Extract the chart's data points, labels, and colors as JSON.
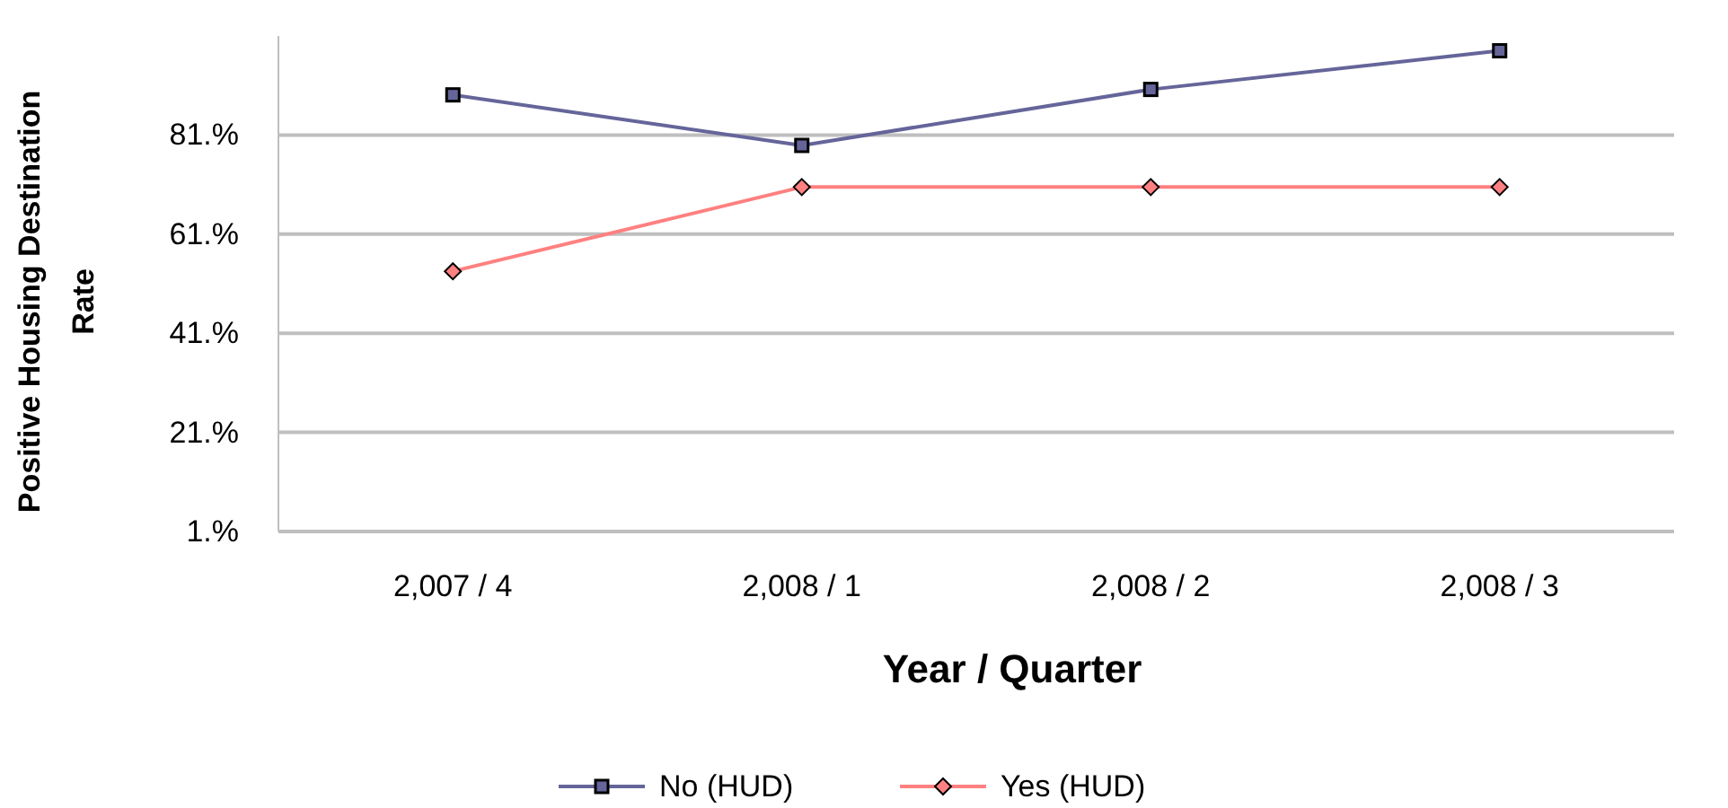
{
  "chart_data": {
    "type": "line",
    "xlabel": "Year / Quarter",
    "ylabel": "Positive Housing Destination Rate",
    "categories": [
      "2,007 / 4",
      "2,008 / 1",
      "2,008 / 2",
      "2,008 / 3"
    ],
    "series": [
      {
        "name": "No (HUD)",
        "color": "#65659a",
        "marker": "square",
        "values": [
          89.1,
          78.9,
          90.2,
          98.0
        ]
      },
      {
        "name": "Yes (HUD)",
        "color": "#ff8080",
        "marker": "diamond",
        "values": [
          53.5,
          70.5,
          70.5,
          70.5
        ]
      }
    ],
    "ylim": [
      1,
      101
    ],
    "yticks": [
      {
        "value": 1,
        "label": "1.%"
      },
      {
        "value": 21,
        "label": "21.%"
      },
      {
        "value": 41,
        "label": "41.%"
      },
      {
        "value": 61,
        "label": "61.%"
      },
      {
        "value": 81,
        "label": "81.%"
      }
    ],
    "grid": "y",
    "legend": "bottom",
    "line_style": "solid"
  }
}
